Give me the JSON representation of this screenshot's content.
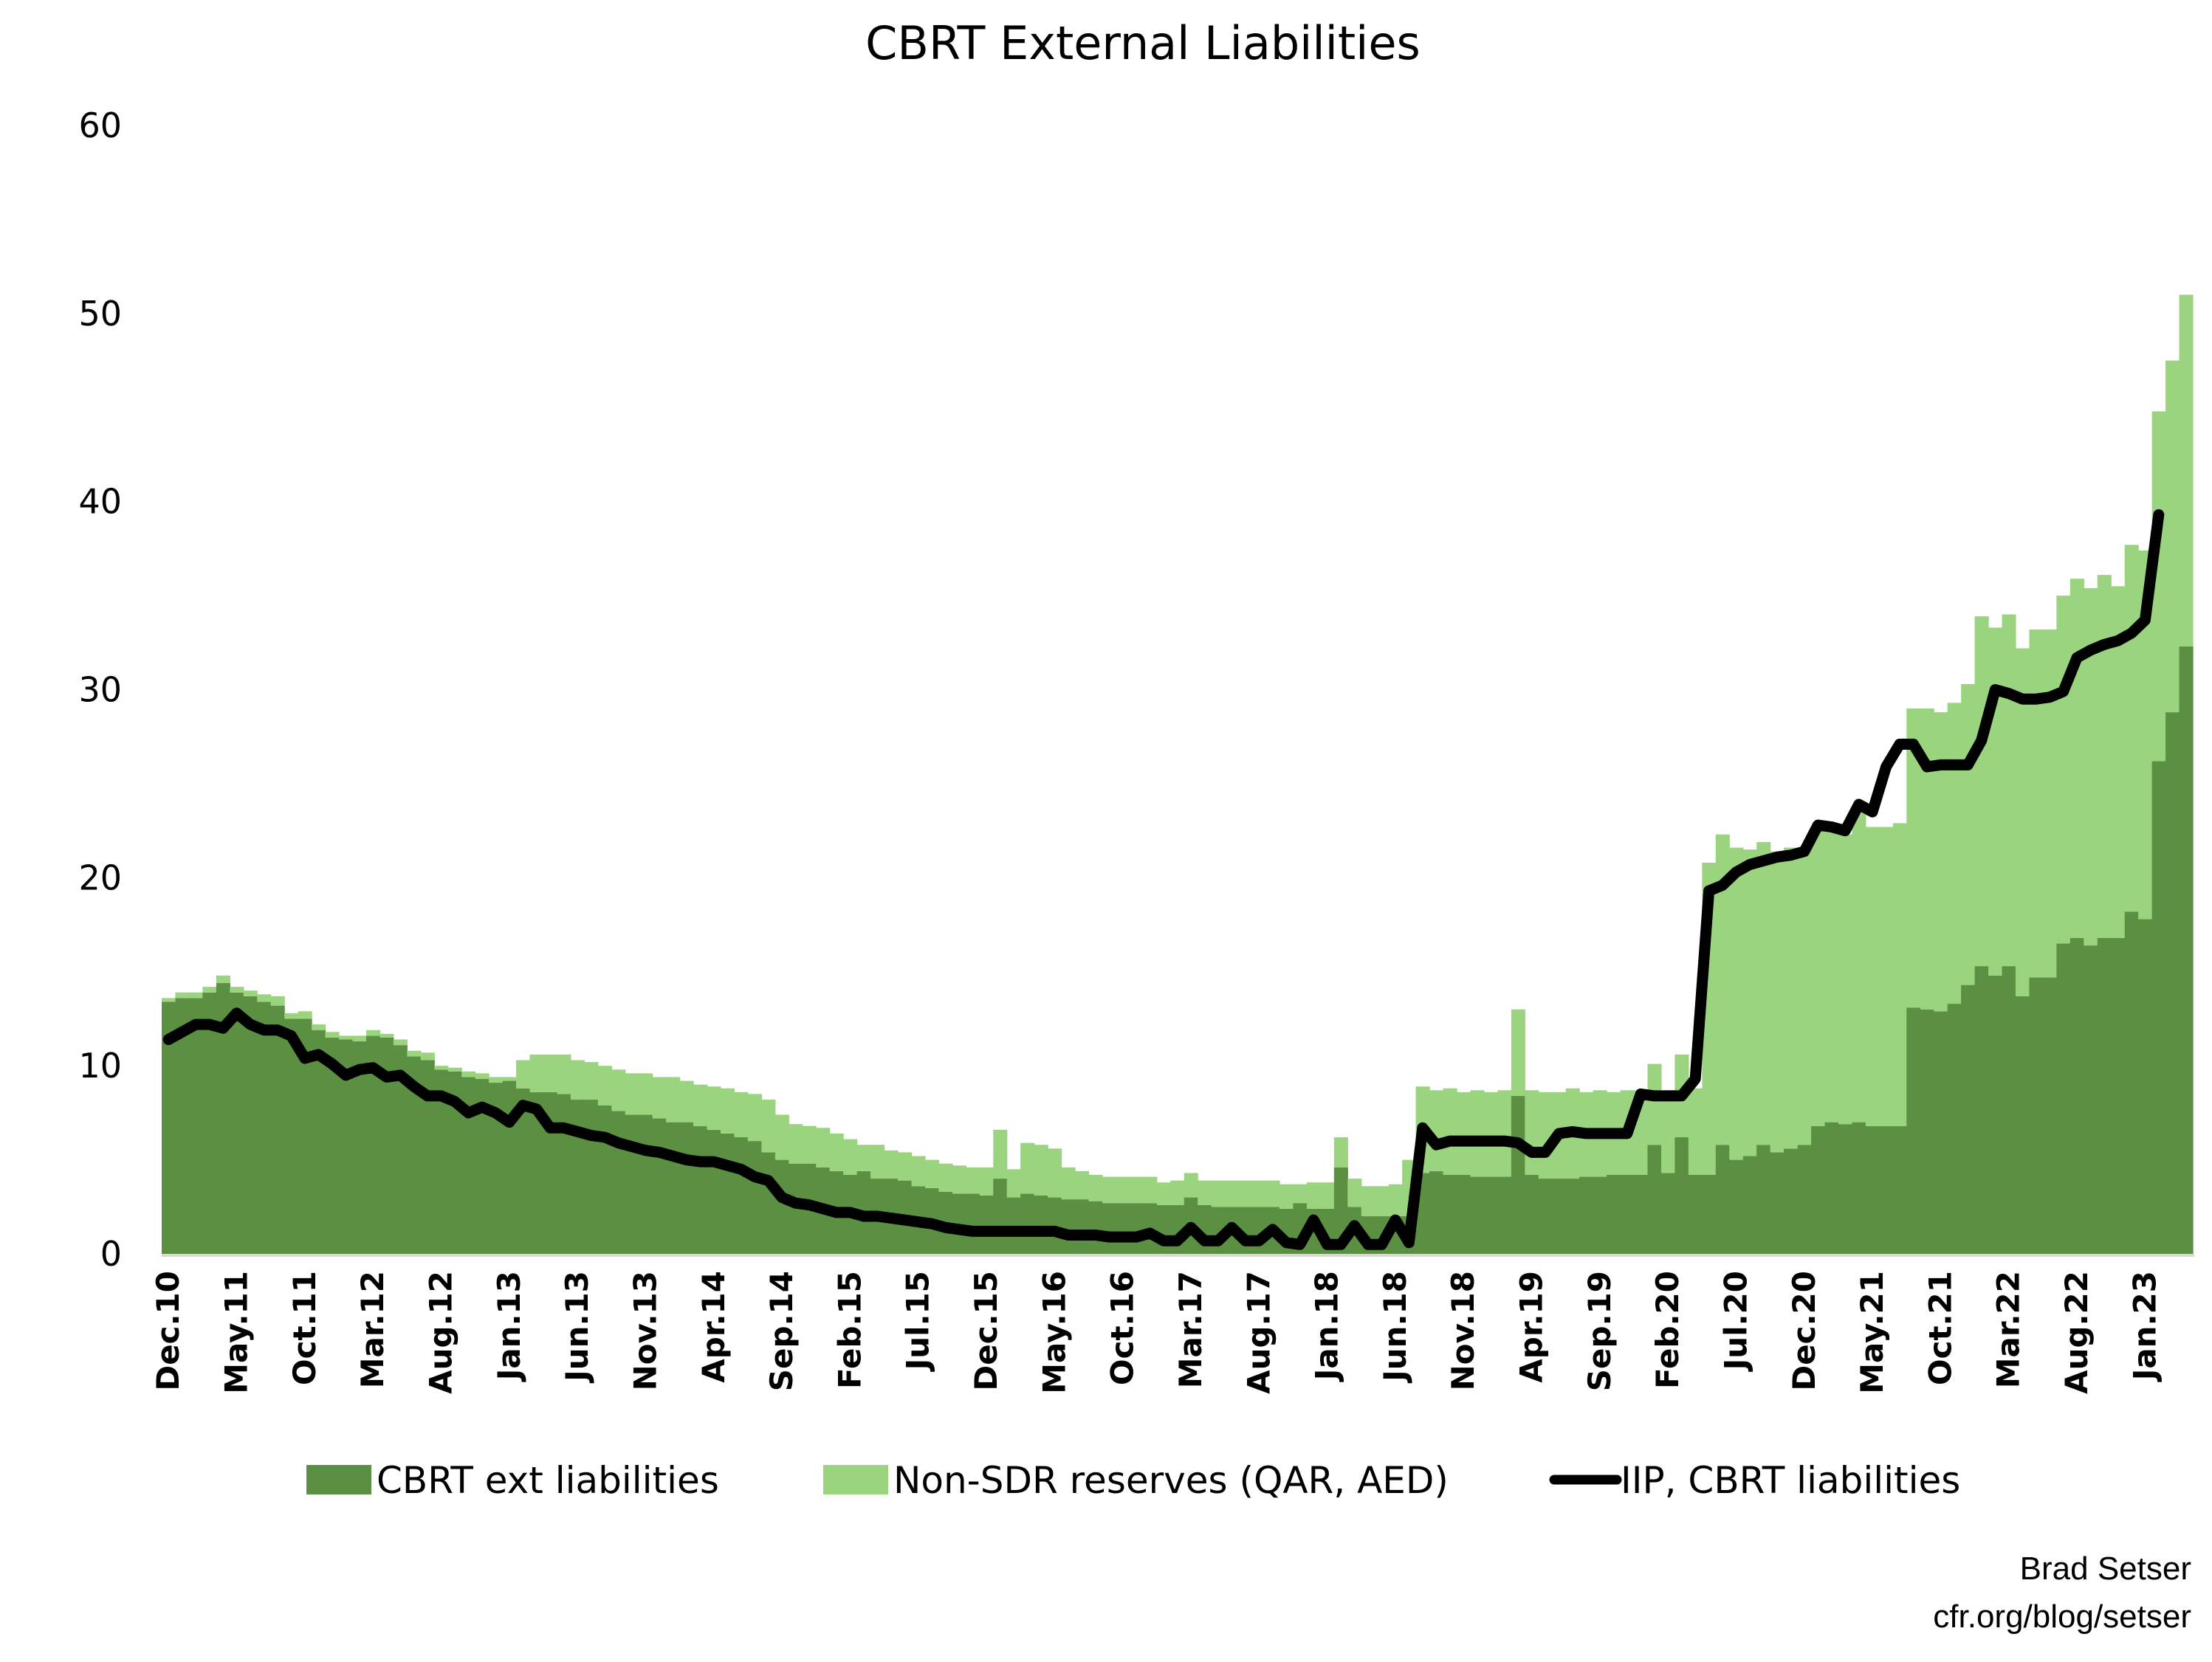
{
  "chart_data": {
    "type": "bar",
    "stacked": true,
    "title": "CBRT External Liabilities",
    "xlabel": "",
    "ylabel": "",
    "ylim": [
      0,
      60
    ],
    "yticks": [
      0,
      10,
      20,
      30,
      40,
      50,
      60
    ],
    "grid": false,
    "legend_position": "bottom",
    "x_tick_labels": [
      "Dec.10",
      "May.11",
      "Oct.11",
      "Mar.12",
      "Aug.12",
      "Jan.13",
      "Jun.13",
      "Nov.13",
      "Apr.14",
      "Sep.14",
      "Feb.15",
      "Jul.15",
      "Dec.15",
      "May.16",
      "Oct.16",
      "Mar.17",
      "Aug.17",
      "Jan.18",
      "Jun.18",
      "Nov.18",
      "Apr.19",
      "Sep.19",
      "Feb.20",
      "Jul.20",
      "Dec.20",
      "May.21",
      "Oct.21",
      "Mar.22",
      "Aug.22",
      "Jan.23"
    ],
    "x_tick_every_months": 5,
    "series": [
      {
        "name": "CBRT ext liabilities",
        "kind": "bar",
        "color": "#5b8f41",
        "values": [
          13.4,
          13.6,
          13.6,
          13.9,
          14.4,
          13.9,
          13.7,
          13.4,
          13.2,
          12.5,
          12.5,
          11.9,
          11.5,
          11.4,
          11.3,
          11.6,
          11.5,
          11.1,
          10.5,
          10.3,
          9.8,
          9.7,
          9.4,
          9.3,
          9.1,
          9.2,
          8.8,
          8.6,
          8.6,
          8.5,
          8.2,
          8.2,
          7.9,
          7.6,
          7.4,
          7.4,
          7.2,
          7.0,
          7.0,
          6.8,
          6.6,
          6.4,
          6.2,
          6.0,
          5.4,
          5.0,
          4.8,
          4.8,
          4.6,
          4.4,
          4.2,
          4.4,
          4.0,
          4.0,
          3.9,
          3.6,
          3.5,
          3.3,
          3.2,
          3.2,
          3.1,
          4.0,
          3.0,
          3.2,
          3.1,
          3.0,
          2.9,
          2.9,
          2.8,
          2.7,
          2.7,
          2.7,
          2.7,
          2.6,
          2.6,
          3.0,
          2.6,
          2.5,
          2.5,
          2.5,
          2.5,
          2.5,
          2.4,
          2.7,
          2.4,
          2.4,
          4.6,
          2.5,
          2.0,
          2.0,
          2.0,
          2.0,
          4.3,
          4.4,
          4.2,
          4.2,
          4.1,
          4.1,
          4.1,
          8.4,
          4.2,
          4.0,
          4.0,
          4.0,
          4.1,
          4.1,
          4.2,
          4.2,
          4.2,
          5.8,
          4.3,
          6.2,
          4.2,
          4.2,
          5.8,
          5.0,
          5.2,
          5.8,
          5.4,
          5.6,
          5.8,
          6.8,
          7.0,
          6.9,
          7.0,
          6.8,
          6.8,
          6.8,
          13.1,
          13.0,
          12.9,
          13.3,
          14.3,
          15.3,
          14.8,
          15.3,
          13.7,
          14.7,
          14.7,
          16.5,
          16.8,
          16.4,
          16.8,
          16.8,
          18.2,
          17.8,
          26.2,
          28.8,
          32.3
        ]
      },
      {
        "name": "Non-SDR reserves (QAR, AED)",
        "kind": "bar",
        "color": "#9bd47e",
        "values": [
          0.2,
          0.3,
          0.3,
          0.3,
          0.4,
          0.3,
          0.3,
          0.4,
          0.5,
          0.3,
          0.4,
          0.3,
          0.3,
          0.2,
          0.3,
          0.3,
          0.2,
          0.3,
          0.3,
          0.4,
          0.2,
          0.2,
          0.3,
          0.3,
          0.3,
          0.2,
          1.5,
          2.0,
          2.0,
          2.1,
          2.1,
          2.0,
          2.1,
          2.2,
          2.2,
          2.2,
          2.2,
          2.4,
          2.2,
          2.2,
          2.3,
          2.4,
          2.4,
          2.5,
          2.8,
          2.4,
          2.1,
          2.0,
          2.1,
          2.0,
          1.9,
          1.4,
          1.8,
          1.5,
          1.5,
          1.6,
          1.5,
          1.5,
          1.5,
          1.4,
          1.5,
          2.6,
          1.5,
          2.7,
          2.7,
          2.6,
          1.7,
          1.5,
          1.4,
          1.4,
          1.4,
          1.4,
          1.4,
          1.2,
          1.3,
          1.3,
          1.3,
          1.4,
          1.4,
          1.4,
          1.4,
          1.4,
          1.3,
          1.0,
          1.4,
          1.4,
          1.6,
          1.5,
          1.6,
          1.6,
          1.7,
          3.0,
          4.6,
          4.3,
          4.6,
          4.4,
          4.6,
          4.5,
          4.6,
          4.6,
          4.5,
          4.6,
          4.6,
          4.8,
          4.5,
          4.6,
          4.4,
          4.5,
          4.5,
          4.3,
          4.4,
          4.4,
          4.6,
          16.6,
          16.5,
          16.6,
          16.3,
          16.1,
          16.0,
          16.0,
          15.8,
          15.7,
          15.5,
          15.4,
          16.5,
          15.9,
          15.9,
          16.1,
          15.9,
          16.0,
          15.9,
          16.0,
          16.0,
          18.6,
          18.5,
          18.7,
          18.5,
          18.5,
          18.5,
          18.5,
          19.1,
          19.0,
          19.3,
          18.7,
          19.5,
          19.6,
          18.6,
          18.7,
          18.7
        ]
      },
      {
        "name": "IIP, CBRT liabilities",
        "kind": "line",
        "color": "#000000",
        "values": [
          11.4,
          11.8,
          12.2,
          12.2,
          12.0,
          12.8,
          12.2,
          11.9,
          11.9,
          11.6,
          10.4,
          10.6,
          10.1,
          9.5,
          9.8,
          9.9,
          9.4,
          9.5,
          8.9,
          8.4,
          8.4,
          8.1,
          7.5,
          7.8,
          7.5,
          7.0,
          7.9,
          7.7,
          6.7,
          6.7,
          6.5,
          6.3,
          6.2,
          5.9,
          5.7,
          5.5,
          5.4,
          5.2,
          5.0,
          4.9,
          4.9,
          4.7,
          4.5,
          4.1,
          3.9,
          3.0,
          2.7,
          2.6,
          2.4,
          2.2,
          2.2,
          2.0,
          2.0,
          1.9,
          1.8,
          1.7,
          1.6,
          1.4,
          1.3,
          1.2,
          1.2,
          1.2,
          1.2,
          1.2,
          1.2,
          1.2,
          1.0,
          1.0,
          1.0,
          0.9,
          0.9,
          0.9,
          1.1,
          0.7,
          0.7,
          1.4,
          0.7,
          0.7,
          1.4,
          0.7,
          0.7,
          1.3,
          0.6,
          0.5,
          1.8,
          0.5,
          0.5,
          1.5,
          0.5,
          0.5,
          1.8,
          0.6,
          6.7,
          5.8,
          6.0,
          6.0,
          6.0,
          6.0,
          6.0,
          5.9,
          5.4,
          5.4,
          6.4,
          6.5,
          6.4,
          6.4,
          6.4,
          6.4,
          8.5,
          8.4,
          8.4,
          8.4,
          9.3,
          19.3,
          19.6,
          20.3,
          20.7,
          20.9,
          21.1,
          21.2,
          21.4,
          22.8,
          22.7,
          22.5,
          23.9,
          23.5,
          25.9,
          27.1,
          27.1,
          25.9,
          26.0,
          26.0,
          26.0,
          27.3,
          30.0,
          29.8,
          29.5,
          29.5,
          29.6,
          29.9,
          31.7,
          32.1,
          32.4,
          32.6,
          33.0,
          33.7,
          39.3,
          null,
          null
        ]
      }
    ]
  },
  "credits": {
    "author": "Brad Setser",
    "source": "cfr.org/blog/setser"
  }
}
